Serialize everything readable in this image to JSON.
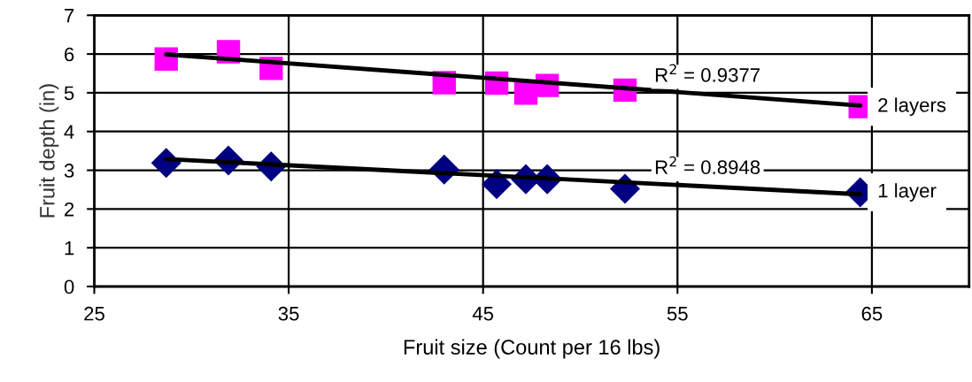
{
  "chart_data": {
    "type": "scatter",
    "xlabel": "Fruit size (Count per 16 lbs)",
    "ylabel": "Fruit depth (in)",
    "xlim": [
      25,
      70
    ],
    "xticks": [
      25,
      35,
      45,
      55,
      65
    ],
    "ylim": [
      0,
      7
    ],
    "yticks": [
      0,
      1,
      2,
      3,
      4,
      5,
      6,
      7
    ],
    "grid": true,
    "legend": false,
    "series": [
      {
        "name": "2 layers",
        "marker": "square",
        "color": "#ff00ff",
        "x": [
          28.7,
          31.9,
          34.1,
          43.0,
          45.7,
          47.2,
          48.3,
          52.3,
          64.4
        ],
        "values": [
          5.87,
          6.06,
          5.63,
          5.26,
          5.25,
          4.99,
          5.19,
          5.07,
          4.64
        ]
      },
      {
        "name": "1 layer",
        "marker": "diamond",
        "color": "#000080",
        "x": [
          28.7,
          31.9,
          34.1,
          43.0,
          45.7,
          47.2,
          48.3,
          52.3,
          64.4
        ],
        "values": [
          3.19,
          3.25,
          3.1,
          3.02,
          2.64,
          2.77,
          2.77,
          2.52,
          2.43
        ]
      },
      {
        "type": "line",
        "marker": "none",
        "color": "#000000",
        "x": [
          28.7,
          64.4
        ],
        "values": [
          5.99,
          4.67
        ]
      },
      {
        "type": "line",
        "marker": "none",
        "color": "#000000",
        "x": [
          28.7,
          64.4
        ],
        "values": [
          3.29,
          2.38
        ]
      }
    ],
    "annotations": [
      "R$^{2}$ = 0.9377",
      "R$^{2}$ = 0.8948"
    ]
  }
}
